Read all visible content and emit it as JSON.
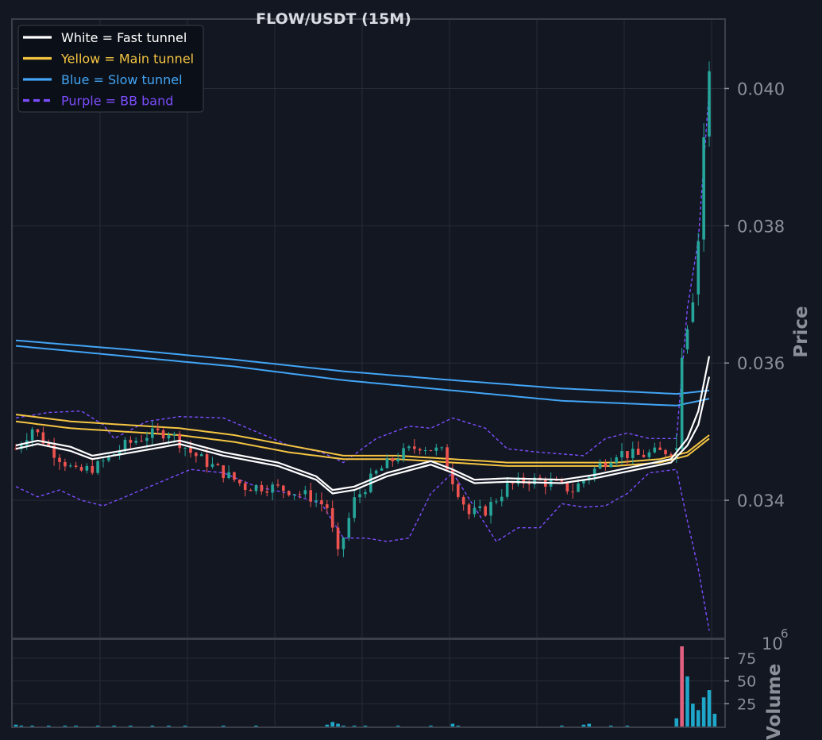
{
  "chart_data": {
    "type": "candlestick",
    "title": "FLOW/USDT (15M)",
    "ylabel": "Price",
    "volume_label": "Volume",
    "volume_exponent_base": "10",
    "volume_exponent": "6",
    "price_ylim": [
      0.032,
      0.041
    ],
    "price_ticks": [
      "0.034",
      "0.036",
      "0.038",
      "0.040"
    ],
    "volume_ylim": [
      0,
      95
    ],
    "volume_ticks": [
      "25",
      "50",
      "75"
    ],
    "grid": true,
    "legend_placement": "top-left",
    "legend": [
      {
        "label": "White = Fast tunnel",
        "color": "#ffffff",
        "style": "solid"
      },
      {
        "label": "Yellow = Main tunnel",
        "color": "#f5c542",
        "style": "solid"
      },
      {
        "label": "Blue = Slow tunnel",
        "color": "#42a5f5",
        "style": "solid"
      },
      {
        "label": "Purple = BB band",
        "color": "#7c4dff",
        "style": "dashed"
      }
    ],
    "colors": {
      "up": "#26a69a",
      "down": "#ef5350",
      "volume": "#1ea7c9",
      "volume_spike": "#e06080",
      "background": "#131722",
      "grid": "#262b36",
      "frame": "#3a3f4a"
    },
    "price_path": [
      [
        0,
        0.03475
      ],
      [
        3,
        0.03505
      ],
      [
        7,
        0.0347
      ],
      [
        11,
        0.0344
      ],
      [
        15,
        0.0345
      ],
      [
        20,
        0.0348
      ],
      [
        24,
        0.03495
      ],
      [
        28,
        0.035
      ],
      [
        32,
        0.0347
      ],
      [
        37,
        0.03445
      ],
      [
        42,
        0.0342
      ],
      [
        46,
        0.0342
      ],
      [
        50,
        0.03415
      ],
      [
        54,
        0.03405
      ],
      [
        57,
        0.0339
      ],
      [
        59,
        0.0332
      ],
      [
        62,
        0.034
      ],
      [
        66,
        0.0344
      ],
      [
        70,
        0.03465
      ],
      [
        74,
        0.0348
      ],
      [
        78,
        0.0347
      ],
      [
        80,
        0.0343
      ],
      [
        83,
        0.0338
      ],
      [
        86,
        0.03385
      ],
      [
        90,
        0.0342
      ],
      [
        94,
        0.0343
      ],
      [
        98,
        0.03425
      ],
      [
        102,
        0.03415
      ],
      [
        106,
        0.03445
      ],
      [
        110,
        0.0347
      ],
      [
        114,
        0.03465
      ],
      [
        118,
        0.0347
      ],
      [
        121,
        0.03475
      ],
      [
        122,
        0.0362
      ],
      [
        124,
        0.037
      ],
      [
        125,
        0.0378
      ],
      [
        126,
        0.0393
      ],
      [
        127,
        0.0402
      ]
    ],
    "fast_tunnel_upper": [
      [
        0,
        0.0348
      ],
      [
        4,
        0.03487
      ],
      [
        10,
        0.03478
      ],
      [
        14,
        0.03465
      ],
      [
        20,
        0.03473
      ],
      [
        30,
        0.03487
      ],
      [
        38,
        0.0347
      ],
      [
        48,
        0.03455
      ],
      [
        55,
        0.03435
      ],
      [
        58,
        0.03415
      ],
      [
        62,
        0.0342
      ],
      [
        68,
        0.0344
      ],
      [
        76,
        0.03457
      ],
      [
        80,
        0.03445
      ],
      [
        84,
        0.0343
      ],
      [
        90,
        0.03432
      ],
      [
        100,
        0.0343
      ],
      [
        106,
        0.03437
      ],
      [
        112,
        0.03447
      ],
      [
        120,
        0.0346
      ],
      [
        123,
        0.0349
      ],
      [
        125,
        0.0353
      ],
      [
        127,
        0.0361
      ]
    ],
    "fast_tunnel_lower": [
      [
        0,
        0.03475
      ],
      [
        4,
        0.03482
      ],
      [
        10,
        0.03472
      ],
      [
        14,
        0.0346
      ],
      [
        20,
        0.03468
      ],
      [
        30,
        0.03482
      ],
      [
        38,
        0.03465
      ],
      [
        48,
        0.0345
      ],
      [
        55,
        0.0343
      ],
      [
        58,
        0.0341
      ],
      [
        62,
        0.03415
      ],
      [
        68,
        0.03435
      ],
      [
        76,
        0.03452
      ],
      [
        80,
        0.0344
      ],
      [
        84,
        0.03425
      ],
      [
        90,
        0.03427
      ],
      [
        100,
        0.03425
      ],
      [
        106,
        0.03432
      ],
      [
        112,
        0.03442
      ],
      [
        120,
        0.03455
      ],
      [
        123,
        0.0348
      ],
      [
        125,
        0.0351
      ],
      [
        127,
        0.0358
      ]
    ],
    "main_tunnel_upper": [
      [
        0,
        0.03525
      ],
      [
        10,
        0.03515
      ],
      [
        20,
        0.0351
      ],
      [
        30,
        0.03505
      ],
      [
        40,
        0.03495
      ],
      [
        50,
        0.0348
      ],
      [
        60,
        0.03465
      ],
      [
        70,
        0.03465
      ],
      [
        80,
        0.0346
      ],
      [
        90,
        0.03455
      ],
      [
        100,
        0.03455
      ],
      [
        110,
        0.03455
      ],
      [
        118,
        0.0346
      ],
      [
        123,
        0.0347
      ],
      [
        127,
        0.03495
      ]
    ],
    "main_tunnel_lower": [
      [
        0,
        0.03515
      ],
      [
        10,
        0.03505
      ],
      [
        20,
        0.035
      ],
      [
        30,
        0.03495
      ],
      [
        40,
        0.03485
      ],
      [
        50,
        0.0347
      ],
      [
        60,
        0.0346
      ],
      [
        70,
        0.0346
      ],
      [
        80,
        0.03455
      ],
      [
        90,
        0.0345
      ],
      [
        100,
        0.0345
      ],
      [
        110,
        0.0345
      ],
      [
        118,
        0.03455
      ],
      [
        123,
        0.03465
      ],
      [
        127,
        0.0349
      ]
    ],
    "slow_tunnel_upper": [
      [
        0,
        0.03633
      ],
      [
        20,
        0.0362
      ],
      [
        40,
        0.03605
      ],
      [
        60,
        0.03588
      ],
      [
        80,
        0.03575
      ],
      [
        100,
        0.03563
      ],
      [
        121,
        0.03555
      ],
      [
        127,
        0.0356
      ]
    ],
    "slow_tunnel_lower": [
      [
        0,
        0.03625
      ],
      [
        20,
        0.0361
      ],
      [
        40,
        0.03595
      ],
      [
        60,
        0.03575
      ],
      [
        80,
        0.0356
      ],
      [
        100,
        0.03545
      ],
      [
        121,
        0.03538
      ],
      [
        127,
        0.03548
      ]
    ],
    "bb_upper": [
      [
        0,
        0.0352
      ],
      [
        6,
        0.03528
      ],
      [
        12,
        0.0353
      ],
      [
        16,
        0.0351
      ],
      [
        18,
        0.0349
      ],
      [
        24,
        0.03515
      ],
      [
        30,
        0.03522
      ],
      [
        38,
        0.0352
      ],
      [
        44,
        0.035
      ],
      [
        50,
        0.0348
      ],
      [
        56,
        0.0347
      ],
      [
        60,
        0.03455
      ],
      [
        66,
        0.0349
      ],
      [
        72,
        0.03508
      ],
      [
        76,
        0.03505
      ],
      [
        80,
        0.0352
      ],
      [
        86,
        0.03505
      ],
      [
        90,
        0.03475
      ],
      [
        96,
        0.0347
      ],
      [
        104,
        0.03465
      ],
      [
        108,
        0.0349
      ],
      [
        112,
        0.03498
      ],
      [
        116,
        0.0349
      ],
      [
        121,
        0.0349
      ],
      [
        123,
        0.0368
      ],
      [
        125,
        0.0378
      ],
      [
        127,
        0.04
      ]
    ],
    "bb_lower": [
      [
        0,
        0.0342
      ],
      [
        4,
        0.03405
      ],
      [
        8,
        0.03415
      ],
      [
        12,
        0.034
      ],
      [
        16,
        0.03392
      ],
      [
        20,
        0.03405
      ],
      [
        26,
        0.03425
      ],
      [
        32,
        0.03445
      ],
      [
        38,
        0.0344
      ],
      [
        44,
        0.0342
      ],
      [
        50,
        0.0341
      ],
      [
        56,
        0.03395
      ],
      [
        60,
        0.03345
      ],
      [
        64,
        0.03345
      ],
      [
        68,
        0.0334
      ],
      [
        72,
        0.03345
      ],
      [
        76,
        0.0341
      ],
      [
        80,
        0.0344
      ],
      [
        84,
        0.0339
      ],
      [
        88,
        0.0334
      ],
      [
        92,
        0.0336
      ],
      [
        96,
        0.0336
      ],
      [
        100,
        0.03395
      ],
      [
        104,
        0.0339
      ],
      [
        108,
        0.03392
      ],
      [
        112,
        0.0341
      ],
      [
        116,
        0.0344
      ],
      [
        121,
        0.03445
      ],
      [
        123,
        0.0337
      ],
      [
        125,
        0.033
      ],
      [
        127,
        0.0321
      ]
    ],
    "volume_series": [
      [
        0,
        2
      ],
      [
        1,
        1
      ],
      [
        3,
        1
      ],
      [
        6,
        1
      ],
      [
        9,
        1
      ],
      [
        11,
        1
      ],
      [
        15,
        1
      ],
      [
        18,
        1
      ],
      [
        21,
        1
      ],
      [
        25,
        1
      ],
      [
        28,
        1
      ],
      [
        31,
        1
      ],
      [
        38,
        1
      ],
      [
        44,
        1
      ],
      [
        57,
        2
      ],
      [
        58,
        5
      ],
      [
        59,
        3
      ],
      [
        60,
        1
      ],
      [
        62,
        1
      ],
      [
        64,
        1
      ],
      [
        70,
        1
      ],
      [
        76,
        1
      ],
      [
        80,
        3
      ],
      [
        81,
        1
      ],
      [
        100,
        1
      ],
      [
        104,
        2
      ],
      [
        105,
        3
      ],
      [
        109,
        1
      ],
      [
        112,
        1
      ],
      [
        121,
        9
      ],
      [
        122,
        88
      ],
      [
        123,
        55
      ],
      [
        124,
        25
      ],
      [
        125,
        18
      ],
      [
        126,
        32
      ],
      [
        127,
        40
      ],
      [
        128,
        14
      ]
    ]
  }
}
